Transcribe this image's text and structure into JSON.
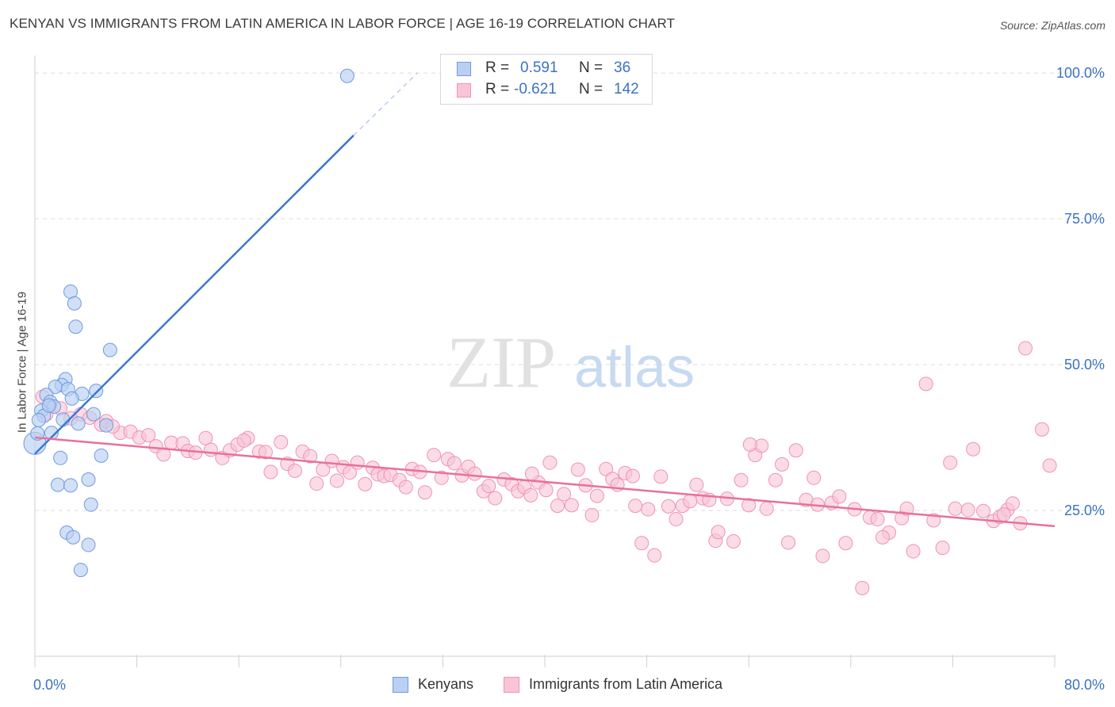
{
  "title": "KENYAN VS IMMIGRANTS FROM LATIN AMERICA IN LABOR FORCE | AGE 16-19 CORRELATION CHART",
  "source": "Source: ZipAtlas.com",
  "watermark": {
    "zip": "ZIP",
    "atlas": "atlas"
  },
  "legend": {
    "r_label": "R =",
    "n_label": "N =",
    "kenyans": {
      "r": "0.591",
      "n": "36"
    },
    "latin": {
      "r": "-0.621",
      "n": "142"
    }
  },
  "colors": {
    "kenyans_fill": "#b9d0f3",
    "kenyans_stroke": "#6f9bde",
    "kenyans_line": "#3a78d4",
    "latin_fill": "#f9c5d6",
    "latin_stroke": "#ef93b2",
    "latin_line": "#e9709a",
    "axis_label": "#3a72c4"
  },
  "chart_data": {
    "type": "scatter",
    "title": "KENYAN VS IMMIGRANTS FROM LATIN AMERICA IN LABOR FORCE | AGE 16-19 CORRELATION CHART",
    "xlabel": "",
    "ylabel": "In Labor Force | Age 16-19",
    "xlim": [
      0,
      80
    ],
    "ylim": [
      0,
      103
    ],
    "x_tick_labels": [
      "0.0%",
      "80.0%"
    ],
    "y_ticks": [
      25,
      50,
      75,
      100
    ],
    "y_tick_labels": [
      "25.0%",
      "50.0%",
      "75.0%",
      "100.0%"
    ],
    "grid": "horizontal dashed",
    "legend_position": "top-center",
    "series": [
      {
        "name": "Kenyans",
        "r": 0.591,
        "n": 36,
        "trend": {
          "x0": 0,
          "y0": 34.7,
          "x1": 25,
          "y1": 89.3,
          "dashed_to": [
            30,
            100
          ]
        },
        "points": [
          [
            24.5,
            99.5
          ],
          [
            2.8,
            62.5
          ],
          [
            3.1,
            60.5
          ],
          [
            3.2,
            56.5
          ],
          [
            5.9,
            52.5
          ],
          [
            2.4,
            47.5
          ],
          [
            2.1,
            46.5
          ],
          [
            4.8,
            45.5
          ],
          [
            1.6,
            46.2
          ],
          [
            0.9,
            44.8
          ],
          [
            2.6,
            45.8
          ],
          [
            1.2,
            43.6
          ],
          [
            3.7,
            45.0
          ],
          [
            0.5,
            42.1
          ],
          [
            0.7,
            41.2
          ],
          [
            0.3,
            40.5
          ],
          [
            1.5,
            42.8
          ],
          [
            2.2,
            40.6
          ],
          [
            3.4,
            39.9
          ],
          [
            5.6,
            39.6
          ],
          [
            1.3,
            38.3
          ],
          [
            0.0,
            36.5
          ],
          [
            2.0,
            34.0
          ],
          [
            5.2,
            34.4
          ],
          [
            4.2,
            30.3
          ],
          [
            1.8,
            29.4
          ],
          [
            2.8,
            29.3
          ],
          [
            4.4,
            26.0
          ],
          [
            2.5,
            21.2
          ],
          [
            3.0,
            20.4
          ],
          [
            4.2,
            19.1
          ],
          [
            3.6,
            14.8
          ],
          [
            1.1,
            43.0
          ],
          [
            2.9,
            44.2
          ],
          [
            4.6,
            41.5
          ],
          [
            0.2,
            38.2
          ]
        ]
      },
      {
        "name": "Immigrants from Latin America",
        "r": -0.621,
        "n": 142,
        "trend": {
          "x0": 0,
          "y0": 37.5,
          "x1": 80,
          "y1": 22.3
        },
        "points": [
          [
            0.6,
            44.5
          ],
          [
            1.2,
            43.0
          ],
          [
            0.9,
            41.5
          ],
          [
            2.0,
            42.5
          ],
          [
            3.6,
            41.5
          ],
          [
            2.8,
            40.8
          ],
          [
            4.3,
            40.9
          ],
          [
            5.2,
            39.7
          ],
          [
            5.6,
            40.3
          ],
          [
            6.7,
            38.3
          ],
          [
            6.1,
            39.4
          ],
          [
            7.5,
            38.5
          ],
          [
            8.2,
            37.5
          ],
          [
            8.9,
            37.9
          ],
          [
            9.5,
            36.0
          ],
          [
            10.1,
            34.6
          ],
          [
            10.7,
            36.6
          ],
          [
            11.6,
            36.5
          ],
          [
            12.0,
            35.2
          ],
          [
            12.6,
            34.9
          ],
          [
            13.4,
            37.4
          ],
          [
            13.8,
            35.4
          ],
          [
            14.7,
            34.0
          ],
          [
            15.3,
            35.3
          ],
          [
            15.9,
            36.3
          ],
          [
            16.7,
            37.4
          ],
          [
            16.4,
            37.0
          ],
          [
            17.6,
            35.1
          ],
          [
            18.1,
            35.0
          ],
          [
            18.5,
            31.6
          ],
          [
            19.3,
            36.7
          ],
          [
            19.8,
            33.0
          ],
          [
            20.4,
            31.8
          ],
          [
            21.0,
            35.1
          ],
          [
            21.6,
            34.3
          ],
          [
            22.1,
            29.6
          ],
          [
            22.6,
            32.0
          ],
          [
            23.3,
            33.5
          ],
          [
            23.7,
            30.1
          ],
          [
            24.2,
            32.4
          ],
          [
            24.7,
            31.5
          ],
          [
            25.3,
            33.2
          ],
          [
            25.9,
            29.5
          ],
          [
            26.5,
            32.3
          ],
          [
            26.9,
            31.2
          ],
          [
            27.4,
            30.9
          ],
          [
            27.9,
            31.1
          ],
          [
            28.6,
            30.2
          ],
          [
            29.1,
            29.0
          ],
          [
            29.6,
            32.1
          ],
          [
            30.2,
            31.6
          ],
          [
            30.6,
            28.1
          ],
          [
            31.3,
            34.5
          ],
          [
            31.9,
            30.6
          ],
          [
            32.4,
            33.8
          ],
          [
            32.9,
            33.1
          ],
          [
            33.5,
            31.0
          ],
          [
            34.0,
            32.5
          ],
          [
            34.5,
            31.3
          ],
          [
            35.2,
            28.3
          ],
          [
            35.6,
            29.2
          ],
          [
            36.1,
            27.1
          ],
          [
            36.8,
            30.3
          ],
          [
            37.4,
            29.5
          ],
          [
            37.9,
            28.3
          ],
          [
            38.4,
            29.0
          ],
          [
            38.9,
            27.6
          ],
          [
            39.5,
            29.8
          ],
          [
            40.1,
            28.5
          ],
          [
            40.4,
            33.2
          ],
          [
            41.0,
            25.8
          ],
          [
            41.5,
            27.8
          ],
          [
            42.1,
            25.9
          ],
          [
            42.6,
            32.0
          ],
          [
            43.2,
            29.3
          ],
          [
            43.7,
            24.2
          ],
          [
            44.1,
            27.5
          ],
          [
            44.8,
            32.1
          ],
          [
            45.3,
            30.4
          ],
          [
            45.7,
            29.4
          ],
          [
            46.3,
            31.4
          ],
          [
            47.1,
            25.8
          ],
          [
            47.6,
            19.4
          ],
          [
            48.1,
            25.2
          ],
          [
            48.6,
            17.3
          ],
          [
            49.1,
            30.8
          ],
          [
            49.7,
            25.7
          ],
          [
            50.3,
            23.5
          ],
          [
            50.8,
            25.8
          ],
          [
            51.4,
            26.6
          ],
          [
            51.9,
            29.4
          ],
          [
            52.4,
            27.1
          ],
          [
            52.9,
            26.8
          ],
          [
            53.4,
            19.8
          ],
          [
            53.6,
            21.3
          ],
          [
            54.3,
            27.0
          ],
          [
            54.8,
            19.7
          ],
          [
            55.4,
            30.2
          ],
          [
            56.0,
            25.9
          ],
          [
            56.5,
            34.5
          ],
          [
            57.0,
            36.1
          ],
          [
            57.4,
            25.3
          ],
          [
            58.1,
            30.2
          ],
          [
            58.6,
            32.9
          ],
          [
            59.1,
            19.5
          ],
          [
            59.7,
            35.3
          ],
          [
            60.5,
            26.8
          ],
          [
            61.1,
            30.6
          ],
          [
            61.4,
            26.0
          ],
          [
            61.8,
            17.2
          ],
          [
            62.5,
            26.3
          ],
          [
            63.1,
            27.4
          ],
          [
            63.6,
            19.4
          ],
          [
            64.3,
            25.2
          ],
          [
            64.9,
            11.7
          ],
          [
            65.5,
            23.8
          ],
          [
            66.1,
            23.5
          ],
          [
            67.0,
            21.2
          ],
          [
            68.0,
            23.7
          ],
          [
            68.4,
            25.3
          ],
          [
            68.9,
            18.0
          ],
          [
            69.9,
            46.7
          ],
          [
            70.5,
            23.3
          ],
          [
            71.2,
            18.6
          ],
          [
            71.8,
            33.2
          ],
          [
            72.2,
            25.3
          ],
          [
            73.2,
            25.1
          ],
          [
            73.6,
            35.5
          ],
          [
            74.4,
            24.9
          ],
          [
            75.2,
            23.2
          ],
          [
            75.7,
            23.9
          ],
          [
            76.3,
            25.1
          ],
          [
            76.7,
            26.2
          ],
          [
            77.3,
            22.8
          ],
          [
            77.7,
            52.8
          ],
          [
            79.0,
            38.9
          ],
          [
            79.6,
            32.7
          ],
          [
            76.0,
            24.3
          ],
          [
            66.5,
            20.4
          ],
          [
            56.1,
            36.3
          ],
          [
            46.9,
            30.9
          ],
          [
            39.0,
            31.3
          ]
        ]
      }
    ]
  },
  "bottom_legend": [
    "Kenyans",
    "Immigrants from Latin America"
  ]
}
